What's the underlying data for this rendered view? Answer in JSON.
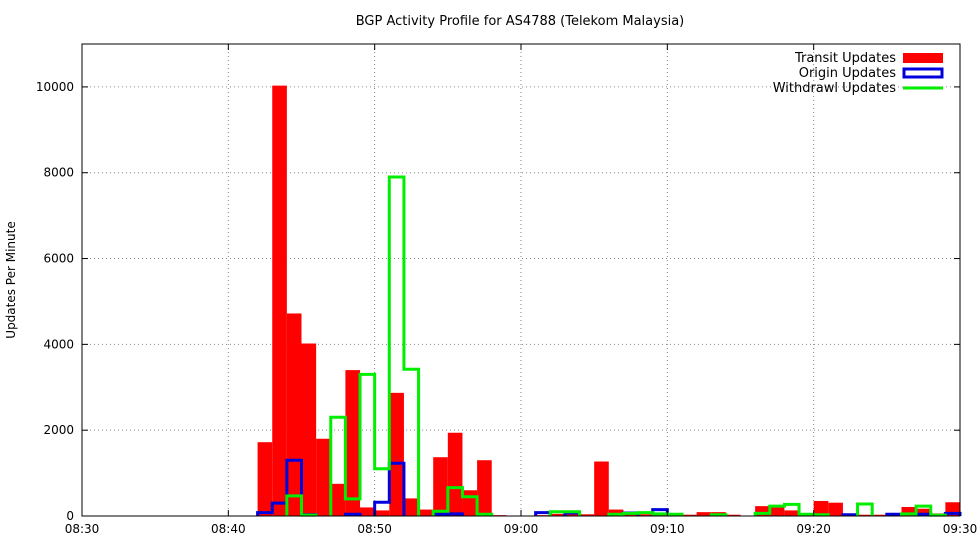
{
  "chart_data": {
    "type": "bar",
    "title": "BGP Activity Profile for AS4788 (Telekom Malaysia)",
    "xlabel": "",
    "ylabel": "Updates Per Minute",
    "xlim": [
      0,
      60
    ],
    "ylim": [
      0,
      11000
    ],
    "bin_width_minutes": 1,
    "x_ticks": [
      {
        "value": 0,
        "label": "08:30"
      },
      {
        "value": 10,
        "label": "08:40"
      },
      {
        "value": 20,
        "label": "08:50"
      },
      {
        "value": 30,
        "label": "09:00"
      },
      {
        "value": 40,
        "label": "09:10"
      },
      {
        "value": 50,
        "label": "09:20"
      },
      {
        "value": 60,
        "label": "09:30"
      }
    ],
    "y_ticks": [
      {
        "value": 0,
        "label": "0"
      },
      {
        "value": 2000,
        "label": "2000"
      },
      {
        "value": 4000,
        "label": "4000"
      },
      {
        "value": 6000,
        "label": "6000"
      },
      {
        "value": 8000,
        "label": "8000"
      },
      {
        "value": 10000,
        "label": "10000"
      }
    ],
    "grid": true,
    "legend_position": "top-right",
    "series": [
      {
        "name": "Transit Updates",
        "style": "filled",
        "color": "#ff0000",
        "points": [
          {
            "x": 12.5,
            "y": 1720
          },
          {
            "x": 13.5,
            "y": 10030
          },
          {
            "x": 14.5,
            "y": 4720
          },
          {
            "x": 15.5,
            "y": 4020
          },
          {
            "x": 16.5,
            "y": 1800
          },
          {
            "x": 17.5,
            "y": 750
          },
          {
            "x": 18.5,
            "y": 3400
          },
          {
            "x": 19.5,
            "y": 200
          },
          {
            "x": 20.5,
            "y": 130
          },
          {
            "x": 21.5,
            "y": 2870
          },
          {
            "x": 22.5,
            "y": 410
          },
          {
            "x": 23.5,
            "y": 150
          },
          {
            "x": 24.5,
            "y": 1370
          },
          {
            "x": 25.5,
            "y": 1940
          },
          {
            "x": 26.5,
            "y": 600
          },
          {
            "x": 27.5,
            "y": 1300
          },
          {
            "x": 28.5,
            "y": 20
          },
          {
            "x": 31.5,
            "y": 20
          },
          {
            "x": 32.5,
            "y": 50
          },
          {
            "x": 33.5,
            "y": 60
          },
          {
            "x": 34.5,
            "y": 40
          },
          {
            "x": 35.5,
            "y": 1270
          },
          {
            "x": 36.5,
            "y": 150
          },
          {
            "x": 37.5,
            "y": 60
          },
          {
            "x": 38.5,
            "y": 40
          },
          {
            "x": 39.5,
            "y": 60
          },
          {
            "x": 40.5,
            "y": 50
          },
          {
            "x": 41.5,
            "y": 30
          },
          {
            "x": 42.5,
            "y": 90
          },
          {
            "x": 43.5,
            "y": 90
          },
          {
            "x": 44.5,
            "y": 30
          },
          {
            "x": 46.5,
            "y": 230
          },
          {
            "x": 47.5,
            "y": 200
          },
          {
            "x": 48.5,
            "y": 130
          },
          {
            "x": 49.5,
            "y": 40
          },
          {
            "x": 50.5,
            "y": 350
          },
          {
            "x": 51.5,
            "y": 310
          },
          {
            "x": 52.5,
            "y": 40
          },
          {
            "x": 53.5,
            "y": 30
          },
          {
            "x": 54.5,
            "y": 30
          },
          {
            "x": 55.5,
            "y": 40
          },
          {
            "x": 56.5,
            "y": 210
          },
          {
            "x": 57.5,
            "y": 170
          },
          {
            "x": 58.5,
            "y": 60
          },
          {
            "x": 59.5,
            "y": 320
          }
        ]
      },
      {
        "name": "Origin Updates",
        "style": "outline",
        "color": "#0000dd",
        "points": [
          {
            "x": 12.5,
            "y": 80
          },
          {
            "x": 13.5,
            "y": 300
          },
          {
            "x": 14.5,
            "y": 1300
          },
          {
            "x": 15.5,
            "y": 30
          },
          {
            "x": 18.5,
            "y": 40
          },
          {
            "x": 20.5,
            "y": 320
          },
          {
            "x": 21.5,
            "y": 1230
          },
          {
            "x": 24.5,
            "y": 40
          },
          {
            "x": 25.5,
            "y": 50
          },
          {
            "x": 31.5,
            "y": 80
          },
          {
            "x": 33.5,
            "y": 70
          },
          {
            "x": 37.5,
            "y": 70
          },
          {
            "x": 39.5,
            "y": 150
          },
          {
            "x": 52.5,
            "y": 30
          },
          {
            "x": 55.5,
            "y": 40
          },
          {
            "x": 57.5,
            "y": 40
          },
          {
            "x": 59.5,
            "y": 60
          }
        ]
      },
      {
        "name": "Withdrawl Updates",
        "style": "outline",
        "color": "#00ee00",
        "points": [
          {
            "x": 14.5,
            "y": 470
          },
          {
            "x": 15.5,
            "y": 20
          },
          {
            "x": 17.5,
            "y": 2300
          },
          {
            "x": 18.5,
            "y": 400
          },
          {
            "x": 19.5,
            "y": 3300
          },
          {
            "x": 20.5,
            "y": 1100
          },
          {
            "x": 21.5,
            "y": 7900
          },
          {
            "x": 22.5,
            "y": 3420
          },
          {
            "x": 24.5,
            "y": 110
          },
          {
            "x": 25.5,
            "y": 660
          },
          {
            "x": 26.5,
            "y": 450
          },
          {
            "x": 27.5,
            "y": 40
          },
          {
            "x": 32.5,
            "y": 100
          },
          {
            "x": 33.5,
            "y": 100
          },
          {
            "x": 36.5,
            "y": 40
          },
          {
            "x": 37.5,
            "y": 60
          },
          {
            "x": 38.5,
            "y": 80
          },
          {
            "x": 39.5,
            "y": 50
          },
          {
            "x": 40.5,
            "y": 40
          },
          {
            "x": 43.5,
            "y": 30
          },
          {
            "x": 46.5,
            "y": 60
          },
          {
            "x": 47.5,
            "y": 230
          },
          {
            "x": 48.5,
            "y": 270
          },
          {
            "x": 49.5,
            "y": 40
          },
          {
            "x": 50.5,
            "y": 30
          },
          {
            "x": 53.5,
            "y": 280
          },
          {
            "x": 56.5,
            "y": 50
          },
          {
            "x": 57.5,
            "y": 230
          },
          {
            "x": 58.5,
            "y": 20
          }
        ]
      }
    ]
  }
}
